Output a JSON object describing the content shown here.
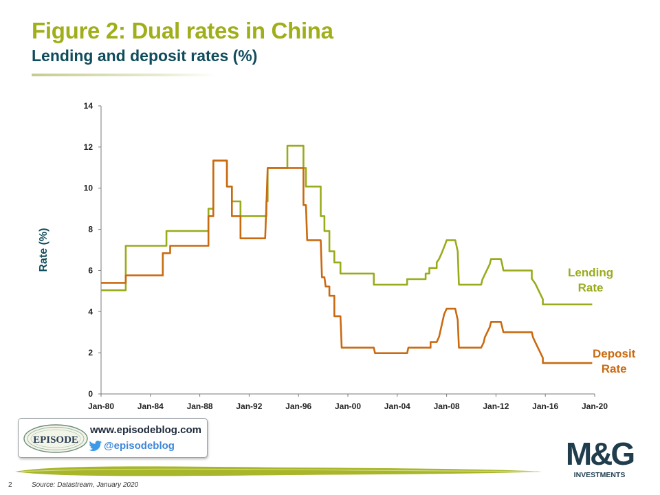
{
  "header": {
    "title": "Figure 2: Dual rates in China",
    "subtitle": "Lending and deposit rates (%)"
  },
  "chart_data": {
    "type": "line",
    "ylabel": "Rate (%)",
    "ylim": [
      0,
      14
    ],
    "yticks": [
      0,
      2,
      4,
      6,
      8,
      10,
      12,
      14
    ],
    "xlim": [
      1980.0,
      2020.0
    ],
    "xticks": [
      {
        "year": 1980,
        "label": "Jan-80"
      },
      {
        "year": 1984,
        "label": "Jan-84"
      },
      {
        "year": 1988,
        "label": "Jan-88"
      },
      {
        "year": 1992,
        "label": "Jan-92"
      },
      {
        "year": 1996,
        "label": "Jan-96"
      },
      {
        "year": 2000,
        "label": "Jan-00"
      },
      {
        "year": 2004,
        "label": "Jan-04"
      },
      {
        "year": 2008,
        "label": "Jan-08"
      },
      {
        "year": 2012,
        "label": "Jan-12"
      },
      {
        "year": 2016,
        "label": "Jan-16"
      },
      {
        "year": 2020,
        "label": "Jan-20"
      }
    ],
    "colors": {
      "lending": "#9aab1a",
      "deposit": "#c96a10"
    },
    "series": [
      {
        "name": "Lending Rate",
        "key": "lending",
        "points": [
          [
            1980.0,
            5.04
          ],
          [
            1982.0,
            5.04
          ],
          [
            1982.0,
            7.2
          ],
          [
            1985.3,
            7.2
          ],
          [
            1985.3,
            7.92
          ],
          [
            1988.7,
            7.92
          ],
          [
            1988.7,
            9.0
          ],
          [
            1989.1,
            9.0
          ],
          [
            1989.1,
            11.34
          ],
          [
            1990.2,
            11.34
          ],
          [
            1990.2,
            10.08
          ],
          [
            1990.6,
            10.08
          ],
          [
            1990.6,
            9.36
          ],
          [
            1991.3,
            9.36
          ],
          [
            1991.3,
            8.64
          ],
          [
            1993.4,
            8.64
          ],
          [
            1993.4,
            9.36
          ],
          [
            1993.5,
            9.36
          ],
          [
            1993.5,
            10.98
          ],
          [
            1995.1,
            10.98
          ],
          [
            1995.1,
            12.06
          ],
          [
            1996.4,
            12.06
          ],
          [
            1996.4,
            10.98
          ],
          [
            1996.6,
            10.98
          ],
          [
            1996.6,
            10.08
          ],
          [
            1997.8,
            10.08
          ],
          [
            1997.8,
            8.64
          ],
          [
            1998.1,
            8.64
          ],
          [
            1998.1,
            7.92
          ],
          [
            1998.5,
            7.92
          ],
          [
            1998.5,
            6.93
          ],
          [
            1998.9,
            6.93
          ],
          [
            1998.9,
            6.39
          ],
          [
            1999.4,
            6.39
          ],
          [
            1999.4,
            5.85
          ],
          [
            2002.1,
            5.85
          ],
          [
            2002.1,
            5.31
          ],
          [
            2004.8,
            5.31
          ],
          [
            2004.8,
            5.58
          ],
          [
            2006.3,
            5.58
          ],
          [
            2006.3,
            5.85
          ],
          [
            2006.6,
            5.85
          ],
          [
            2006.6,
            6.12
          ],
          [
            2007.2,
            6.12
          ],
          [
            2007.2,
            6.39
          ],
          [
            2007.4,
            6.57
          ],
          [
            2007.6,
            6.84
          ],
          [
            2007.9,
            7.29
          ],
          [
            2008.0,
            7.47
          ],
          [
            2008.7,
            7.47
          ],
          [
            2008.9,
            6.93
          ],
          [
            2009.0,
            5.31
          ],
          [
            2010.8,
            5.31
          ],
          [
            2010.9,
            5.56
          ],
          [
            2011.1,
            5.81
          ],
          [
            2011.3,
            6.06
          ],
          [
            2011.5,
            6.31
          ],
          [
            2011.6,
            6.56
          ],
          [
            2012.4,
            6.56
          ],
          [
            2012.5,
            6.31
          ],
          [
            2012.6,
            6.0
          ],
          [
            2014.9,
            6.0
          ],
          [
            2014.9,
            5.6
          ],
          [
            2015.2,
            5.35
          ],
          [
            2015.4,
            5.1
          ],
          [
            2015.6,
            4.85
          ],
          [
            2015.8,
            4.6
          ],
          [
            2015.8,
            4.35
          ],
          [
            2019.8,
            4.35
          ]
        ]
      },
      {
        "name": "Deposit Rate",
        "key": "deposit",
        "points": [
          [
            1980.0,
            5.4
          ],
          [
            1982.0,
            5.4
          ],
          [
            1982.0,
            5.76
          ],
          [
            1985.0,
            5.76
          ],
          [
            1985.0,
            6.84
          ],
          [
            1985.6,
            6.84
          ],
          [
            1985.6,
            7.2
          ],
          [
            1988.7,
            7.2
          ],
          [
            1988.7,
            8.64
          ],
          [
            1989.1,
            8.64
          ],
          [
            1989.1,
            11.34
          ],
          [
            1990.2,
            11.34
          ],
          [
            1990.2,
            10.08
          ],
          [
            1990.6,
            10.08
          ],
          [
            1990.6,
            8.64
          ],
          [
            1991.3,
            8.64
          ],
          [
            1991.3,
            7.56
          ],
          [
            1993.3,
            7.56
          ],
          [
            1993.4,
            9.18
          ],
          [
            1993.5,
            10.98
          ],
          [
            1996.4,
            10.98
          ],
          [
            1996.4,
            9.18
          ],
          [
            1996.6,
            9.18
          ],
          [
            1996.7,
            7.47
          ],
          [
            1997.8,
            7.47
          ],
          [
            1997.9,
            5.67
          ],
          [
            1998.1,
            5.67
          ],
          [
            1998.2,
            5.22
          ],
          [
            1998.5,
            5.22
          ],
          [
            1998.5,
            4.77
          ],
          [
            1998.9,
            4.77
          ],
          [
            1998.9,
            3.78
          ],
          [
            1999.4,
            3.78
          ],
          [
            1999.5,
            2.25
          ],
          [
            2002.1,
            2.25
          ],
          [
            2002.2,
            1.98
          ],
          [
            2004.8,
            1.98
          ],
          [
            2004.9,
            2.25
          ],
          [
            2006.7,
            2.25
          ],
          [
            2006.7,
            2.52
          ],
          [
            2007.2,
            2.52
          ],
          [
            2007.4,
            2.79
          ],
          [
            2007.5,
            3.06
          ],
          [
            2007.6,
            3.33
          ],
          [
            2007.7,
            3.6
          ],
          [
            2007.8,
            3.87
          ],
          [
            2008.0,
            4.14
          ],
          [
            2008.7,
            4.14
          ],
          [
            2008.9,
            3.6
          ],
          [
            2009.0,
            2.25
          ],
          [
            2010.8,
            2.25
          ],
          [
            2011.0,
            2.5
          ],
          [
            2011.1,
            2.75
          ],
          [
            2011.3,
            3.0
          ],
          [
            2011.5,
            3.25
          ],
          [
            2011.6,
            3.5
          ],
          [
            2012.4,
            3.5
          ],
          [
            2012.5,
            3.25
          ],
          [
            2012.6,
            3.0
          ],
          [
            2014.9,
            3.0
          ],
          [
            2015.0,
            2.75
          ],
          [
            2015.2,
            2.5
          ],
          [
            2015.4,
            2.25
          ],
          [
            2015.6,
            2.0
          ],
          [
            2015.8,
            1.75
          ],
          [
            2015.8,
            1.5
          ],
          [
            2019.8,
            1.5
          ]
        ]
      }
    ]
  },
  "legend": {
    "lending_line1": "Lending",
    "lending_line2": "Rate",
    "deposit_line1": "Deposit",
    "deposit_line2": "Rate"
  },
  "branding": {
    "episode_logo_text": "EPISODE",
    "website": "www.episodeblog.com",
    "twitter": "@episodeblog",
    "mg_logo_text": "M&G",
    "mg_logo_sub": "INVESTMENTS"
  },
  "footer": {
    "page_number": "2",
    "source": "Source: Datastream, January 2020"
  }
}
